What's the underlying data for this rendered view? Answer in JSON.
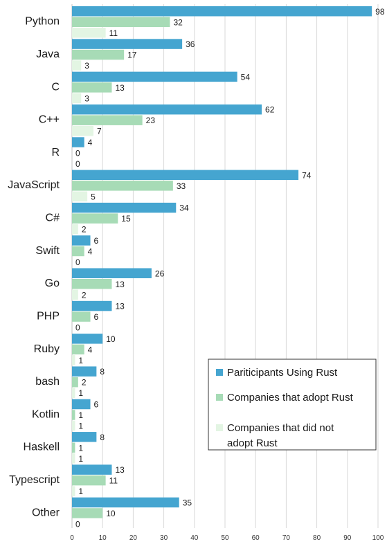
{
  "chart_data": {
    "type": "bar",
    "orientation": "horizontal",
    "categories": [
      "Python",
      "Java",
      "C",
      "C++",
      "R",
      "JavaScript",
      "C#",
      "Swift",
      "Go",
      "PHP",
      "Ruby",
      "bash",
      "Kotlin",
      "Haskell",
      "Typescript",
      "Other"
    ],
    "series": [
      {
        "name": "Pariticipants Using Rust",
        "color": "#45a5d0",
        "values": [
          98,
          36,
          54,
          62,
          4,
          74,
          34,
          6,
          26,
          13,
          10,
          8,
          6,
          8,
          13,
          35
        ]
      },
      {
        "name": "Companies that adopt Rust",
        "color": "#a7dbb6",
        "values": [
          32,
          17,
          13,
          23,
          0,
          33,
          15,
          4,
          13,
          6,
          4,
          2,
          1,
          1,
          11,
          10
        ]
      },
      {
        "name": "Companies that did not adopt Rust",
        "color": "#e3f5e3",
        "values": [
          11,
          3,
          3,
          7,
          0,
          5,
          2,
          0,
          2,
          0,
          1,
          1,
          1,
          1,
          1,
          0
        ]
      }
    ],
    "xlim": [
      0,
      100
    ],
    "xticks": [
      0,
      10,
      20,
      30,
      40,
      50,
      60,
      70,
      80,
      90,
      100
    ],
    "grid": "vertical",
    "legend_position": "bottom-right",
    "legend_lines": [
      [
        "Pariticipants Using Rust"
      ],
      [
        "Companies that adopt Rust"
      ],
      [
        "Companies that did not",
        "adopt Rust"
      ]
    ],
    "title": "",
    "xlabel": "",
    "ylabel": ""
  }
}
